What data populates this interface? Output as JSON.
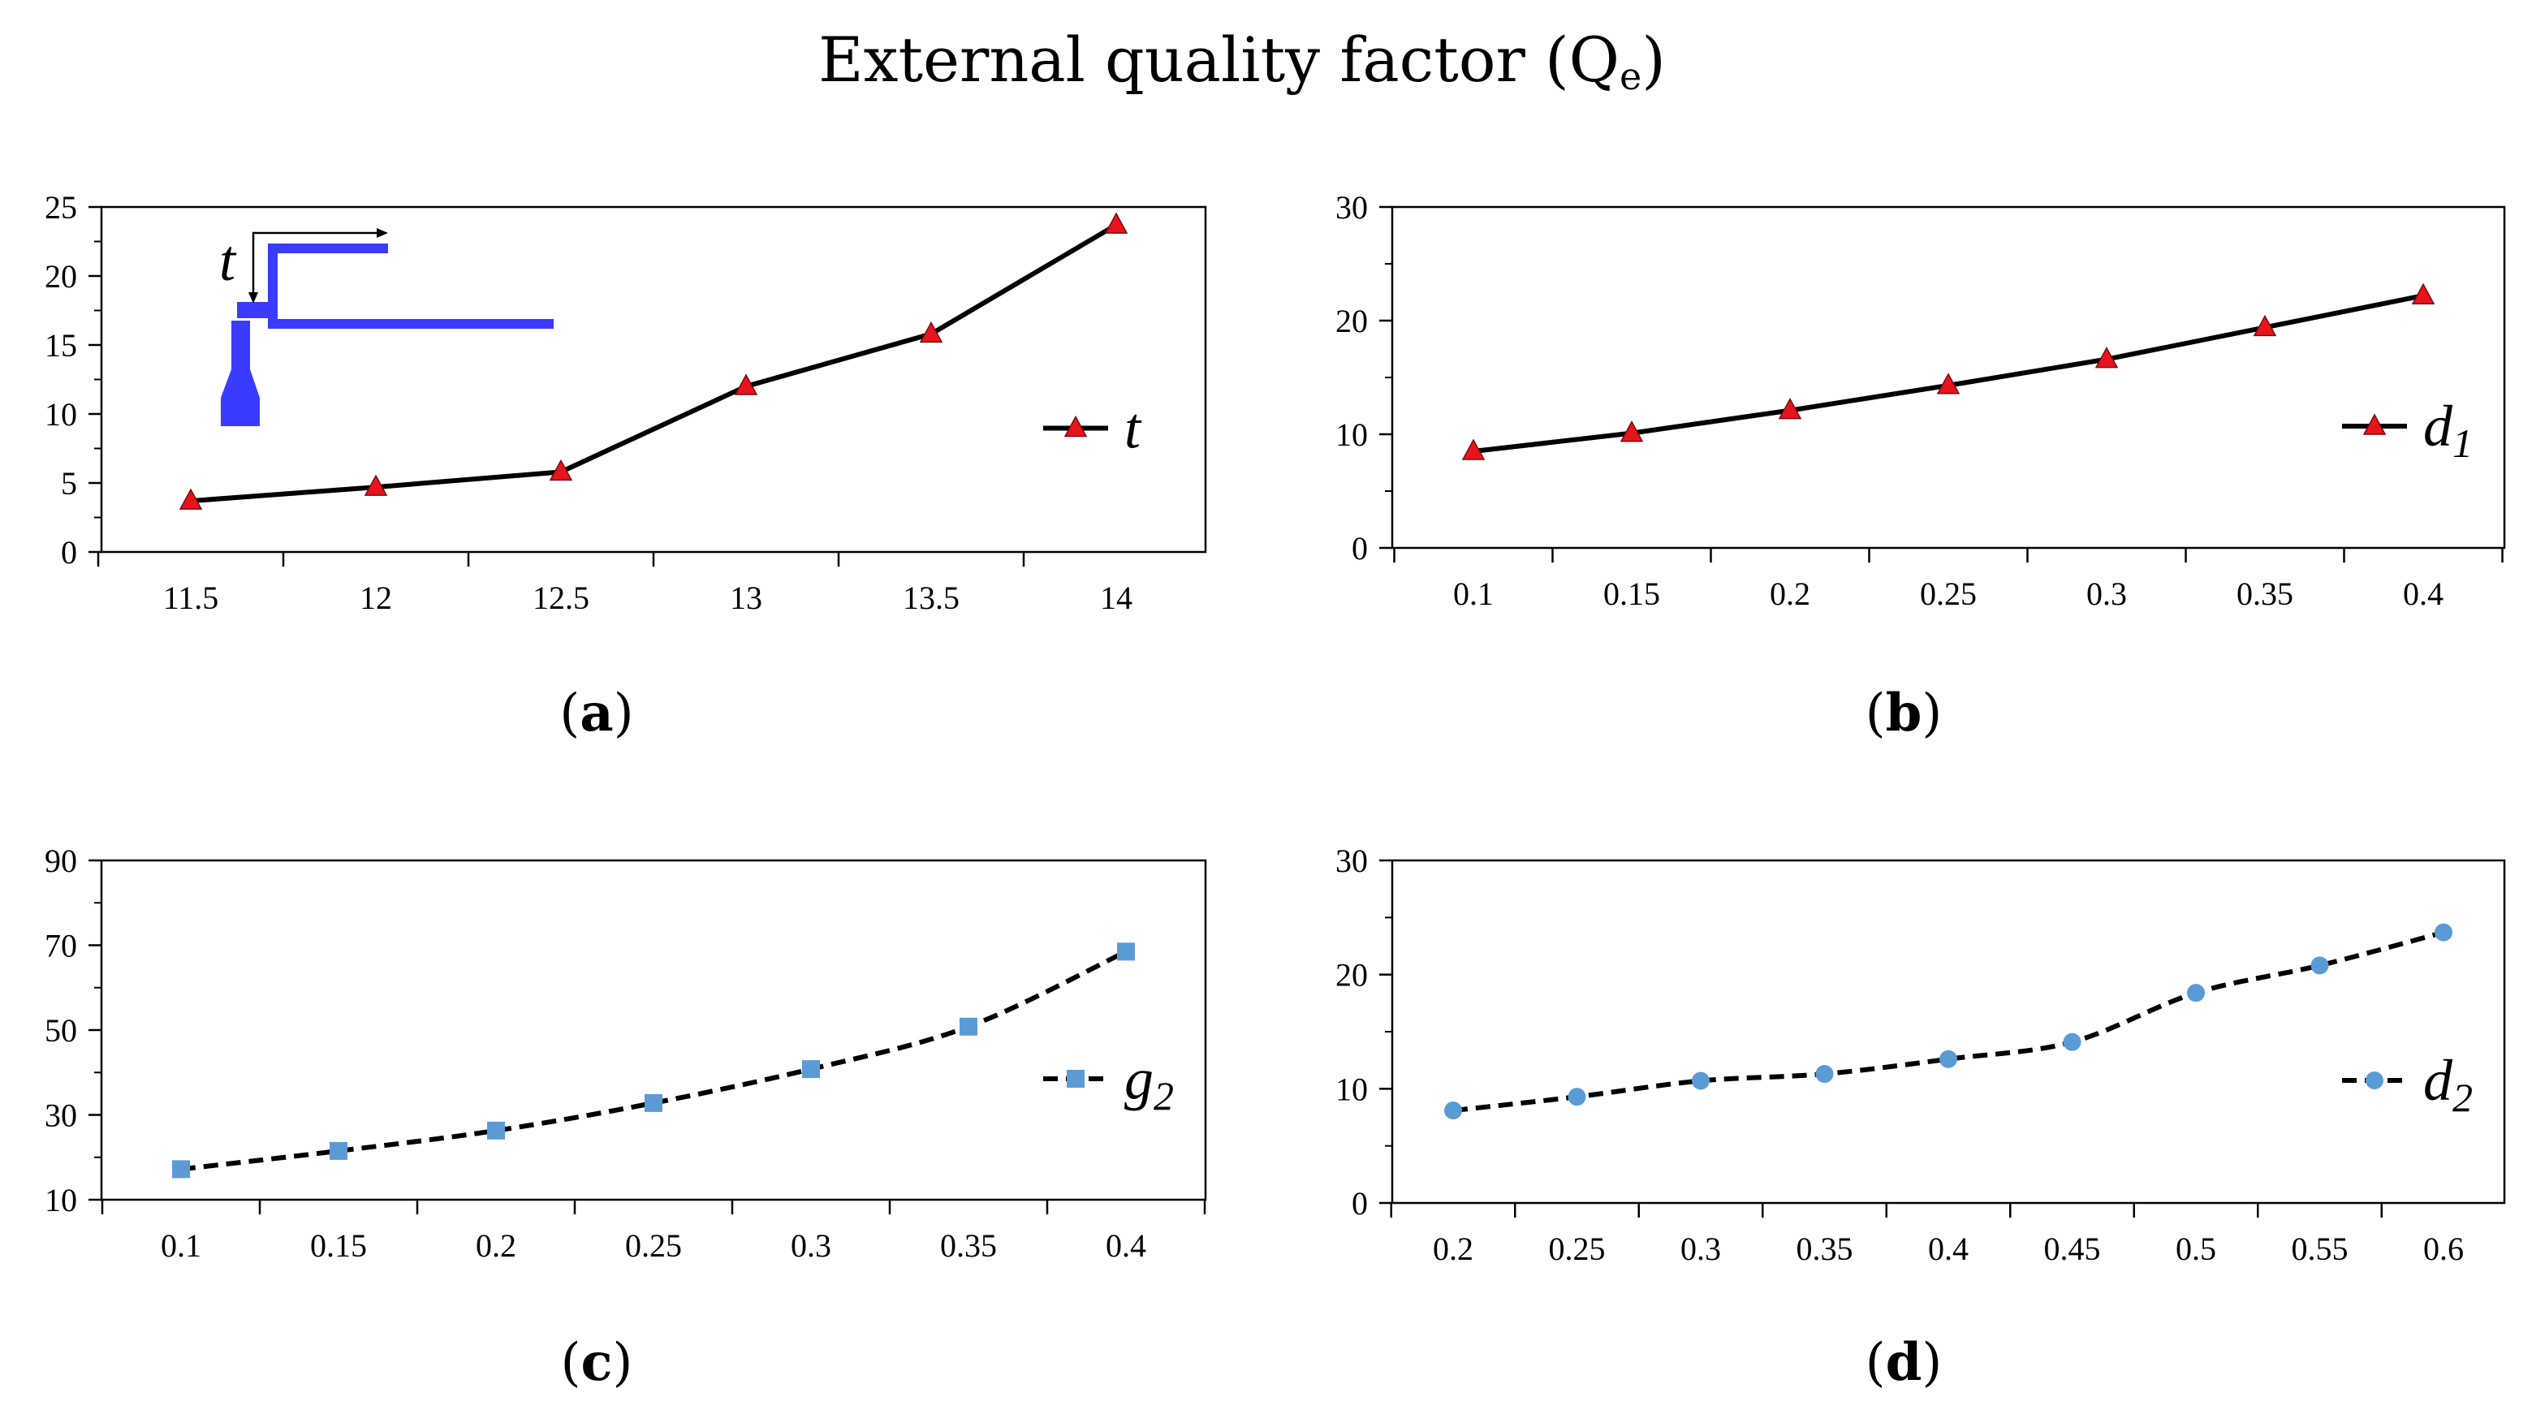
{
  "title": {
    "main": "External quality factor (Q",
    "sub": "e",
    "close": ")"
  },
  "colors": {
    "line": "#000000",
    "triangle": "#e8141c",
    "blue_marker": "#5b9bd5",
    "inset": "#3b3bff"
  },
  "chart_data": [
    {
      "id": "a",
      "type": "line",
      "caption": "(a)",
      "caption_letter": "a",
      "x": [
        11.5,
        12,
        12.5,
        13,
        13.5,
        14
      ],
      "xticks": [
        "11.5",
        "12",
        "12.5",
        "13",
        "13.5",
        "14"
      ],
      "series": [
        {
          "name": "t",
          "values": [
            3.7,
            4.7,
            5.8,
            12.0,
            15.8,
            23.7
          ]
        }
      ],
      "legend": {
        "symbol": "t",
        "subscript": ""
      },
      "inset_label": "t",
      "ylim": [
        0,
        25
      ],
      "yticks": [
        "0",
        "5",
        "10",
        "15",
        "20",
        "25"
      ],
      "marker": "triangle",
      "line_style": "solid",
      "legend_position": "right-middle"
    },
    {
      "id": "b",
      "type": "line",
      "caption": "(b)",
      "caption_letter": "b",
      "x": [
        0.1,
        0.15,
        0.2,
        0.25,
        0.3,
        0.35,
        0.4
      ],
      "xticks": [
        "0.1",
        "0.15",
        "0.2",
        "0.25",
        "0.3",
        "0.35",
        "0.4"
      ],
      "series": [
        {
          "name": "d1",
          "values": [
            8.5,
            10.1,
            12.1,
            14.3,
            16.6,
            19.4,
            22.2
          ]
        }
      ],
      "legend": {
        "symbol": "d",
        "subscript": "1"
      },
      "ylim": [
        0,
        30
      ],
      "yticks": [
        "0",
        "10",
        "20",
        "30"
      ],
      "marker": "triangle",
      "line_style": "solid",
      "legend_position": "right-middle"
    },
    {
      "id": "c",
      "type": "line",
      "caption": "(c)",
      "caption_letter": "c",
      "x": [
        0.1,
        0.15,
        0.2,
        0.25,
        0.3,
        0.35,
        0.4
      ],
      "xticks": [
        "0.1",
        "0.15",
        "0.2",
        "0.25",
        "0.3",
        "0.35",
        "0.4"
      ],
      "series": [
        {
          "name": "g2",
          "values": [
            17.2,
            21.5,
            26.3,
            32.8,
            40.8,
            50.8,
            68.5
          ]
        }
      ],
      "legend": {
        "symbol": "g",
        "subscript": "2"
      },
      "ylim": [
        10,
        90
      ],
      "yticks": [
        "10",
        "30",
        "50",
        "70",
        "90"
      ],
      "marker": "square",
      "line_style": "dashed",
      "legend_position": "right-middle"
    },
    {
      "id": "d",
      "type": "line",
      "caption": "(d)",
      "caption_letter": "d",
      "x": [
        0.2,
        0.25,
        0.3,
        0.35,
        0.4,
        0.45,
        0.5,
        0.55,
        0.6
      ],
      "xticks": [
        "0.2",
        "0.25",
        "0.3",
        "0.35",
        "0.4",
        "0.45",
        "0.5",
        "0.55",
        "0.6"
      ],
      "series": [
        {
          "name": "d2",
          "values": [
            8.1,
            9.3,
            10.7,
            11.3,
            12.6,
            14.1,
            18.4,
            20.8,
            23.7
          ]
        }
      ],
      "legend": {
        "symbol": "d",
        "subscript": "2"
      },
      "ylim": [
        0,
        30
      ],
      "yticks": [
        "0",
        "10",
        "20",
        "30"
      ],
      "marker": "circle",
      "line_style": "dashed",
      "legend_position": "right-middle"
    }
  ]
}
